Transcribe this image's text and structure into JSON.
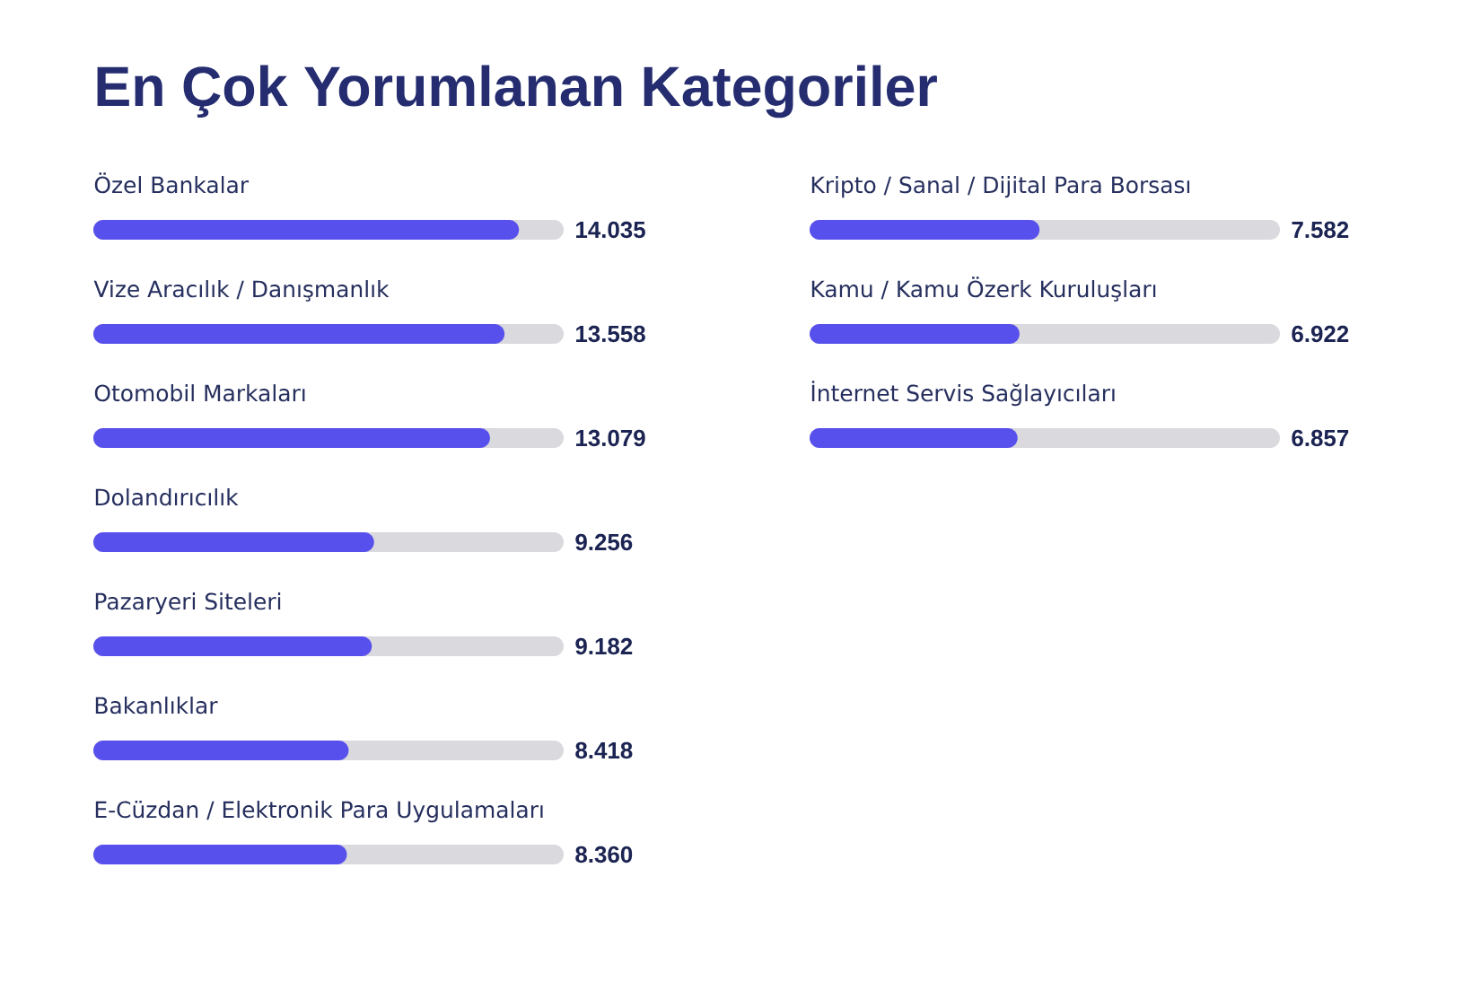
{
  "chart_data": [
    {
      "type": "bar",
      "orientation": "horizontal",
      "title": "En Çok Yorumlanan Kategoriler",
      "categories": [
        "Özel Bankalar",
        "Vize Aracılık / Danışmanlık",
        "Otomobil Markaları",
        "Dolandırıcılık",
        "Pazaryeri Siteleri",
        "Bakanlıklar",
        "E-Cüzdan / Elektronik Para Uygulamaları"
      ],
      "values": [
        14035,
        13558,
        13079,
        9256,
        9182,
        8418,
        8360
      ],
      "value_labels": [
        "14.035",
        "13.558",
        "13.079",
        "9.256",
        "9.182",
        "8.418",
        "8.360"
      ],
      "color": "#5850ec"
    },
    {
      "type": "bar",
      "orientation": "horizontal",
      "categories": [
        "Kripto / Sanal / Dijital Para Borsası",
        "Kamu / Kamu Özerk Kuruluşları",
        "İnternet Servis Sağlayıcıları"
      ],
      "values": [
        7582,
        6922,
        6857
      ],
      "value_labels": [
        "7.582",
        "6.922",
        "6.857"
      ],
      "color": "#5850ec"
    }
  ]
}
